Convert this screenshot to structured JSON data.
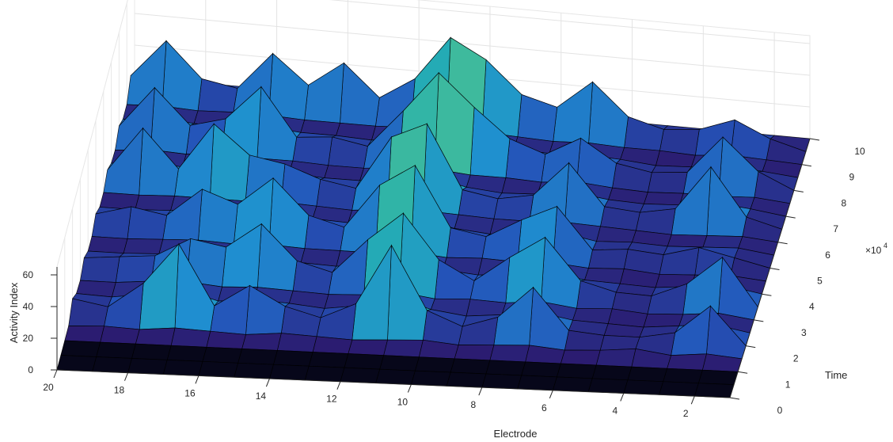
{
  "chart_data": {
    "type": "surface",
    "x_axis": {
      "label": "Electrode",
      "ticks": [
        2,
        4,
        6,
        8,
        10,
        12,
        14,
        16,
        18,
        20
      ],
      "range": [
        1,
        20
      ]
    },
    "y_axis": {
      "label": "Time",
      "ticks": [
        0,
        1,
        2,
        3,
        4,
        5,
        6,
        7,
        8,
        9,
        10
      ],
      "range": [
        0,
        10
      ],
      "exponent_label": "×10",
      "exponent_power": "4"
    },
    "z_axis": {
      "label": "Activity Index",
      "ticks": [
        0,
        20,
        40,
        60
      ],
      "range": [
        0,
        65
      ]
    },
    "grid": true,
    "colormap": "parula",
    "colors": [
      "#2b1a6e",
      "#2452b8",
      "#1f8fd0",
      "#25b0b0",
      "#5cc686",
      "#b9c55a",
      "#f0b93a"
    ],
    "electrodes": [
      1,
      2,
      3,
      4,
      5,
      6,
      7,
      8,
      9,
      10,
      11,
      12,
      13,
      14,
      15,
      16,
      17,
      18,
      19,
      20
    ],
    "time_rows": [
      0,
      0.5,
      1,
      1.5,
      2,
      2.5,
      3,
      3.5,
      4,
      4.5,
      5,
      5.5,
      6,
      6.5,
      7,
      7.5,
      8,
      8.5,
      9,
      9.5,
      10
    ],
    "activity": [
      [
        0,
        0,
        0,
        0,
        0,
        0,
        0,
        0,
        0,
        0,
        0,
        0,
        0,
        0,
        0,
        0,
        0,
        0,
        0,
        0
      ],
      [
        0,
        0,
        0,
        0,
        0,
        0,
        0,
        0,
        0,
        0,
        0,
        0,
        0,
        0,
        0,
        0,
        0,
        0,
        0,
        0
      ],
      [
        0,
        0,
        0,
        0,
        0,
        0,
        0,
        0,
        0,
        0,
        0,
        0,
        0,
        0,
        0,
        0,
        0,
        0,
        0,
        0
      ],
      [
        0,
        2,
        0,
        3,
        1,
        0,
        2,
        1,
        0,
        2,
        1,
        0,
        1,
        2,
        0,
        1,
        2,
        0,
        1,
        0
      ],
      [
        0,
        24,
        6,
        2,
        2,
        4,
        30,
        10,
        3,
        12,
        52,
        14,
        4,
        10,
        22,
        8,
        46,
        20,
        4,
        8
      ],
      [
        0,
        4,
        2,
        0,
        1,
        2,
        6,
        3,
        1,
        4,
        10,
        4,
        1,
        3,
        4,
        2,
        8,
        4,
        1,
        2
      ],
      [
        0,
        3,
        1,
        0,
        2,
        1,
        4,
        2,
        3,
        2,
        5,
        2,
        1,
        2,
        3,
        2,
        4,
        3,
        1,
        1
      ],
      [
        0,
        30,
        12,
        3,
        4,
        10,
        36,
        22,
        6,
        18,
        46,
        28,
        6,
        12,
        34,
        18,
        22,
        10,
        8,
        6
      ],
      [
        0,
        4,
        2,
        0,
        1,
        2,
        6,
        3,
        1,
        3,
        8,
        4,
        1,
        2,
        5,
        3,
        4,
        2,
        1,
        1
      ],
      [
        0,
        2,
        1,
        0,
        2,
        1,
        3,
        2,
        3,
        2,
        4,
        2,
        2,
        2,
        3,
        2,
        3,
        2,
        1,
        1
      ],
      [
        0,
        5,
        10,
        4,
        6,
        4,
        30,
        20,
        8,
        12,
        50,
        36,
        8,
        14,
        36,
        18,
        26,
        8,
        12,
        6
      ],
      [
        0,
        3,
        2,
        1,
        2,
        1,
        5,
        3,
        1,
        3,
        8,
        5,
        2,
        3,
        5,
        3,
        4,
        2,
        1,
        1
      ],
      [
        0,
        2,
        1,
        0,
        1,
        2,
        3,
        2,
        2,
        3,
        4,
        3,
        1,
        2,
        3,
        2,
        2,
        2,
        1,
        1
      ],
      [
        0,
        6,
        36,
        8,
        4,
        6,
        32,
        10,
        6,
        10,
        50,
        40,
        6,
        10,
        18,
        22,
        40,
        10,
        34,
        6
      ],
      [
        0,
        3,
        5,
        2,
        1,
        2,
        5,
        2,
        1,
        3,
        8,
        5,
        2,
        2,
        3,
        3,
        5,
        2,
        4,
        1
      ],
      [
        0,
        2,
        1,
        1,
        0,
        1,
        3,
        1,
        2,
        2,
        4,
        3,
        1,
        1,
        2,
        2,
        3,
        1,
        2,
        0
      ],
      [
        0,
        10,
        30,
        6,
        4,
        8,
        22,
        10,
        18,
        36,
        56,
        30,
        6,
        10,
        8,
        38,
        16,
        10,
        32,
        6
      ],
      [
        0,
        2,
        4,
        1,
        0,
        2,
        3,
        2,
        3,
        4,
        8,
        4,
        1,
        2,
        2,
        4,
        2,
        2,
        4,
        1
      ],
      [
        0,
        1,
        2,
        0,
        1,
        1,
        2,
        1,
        2,
        3,
        4,
        2,
        1,
        1,
        1,
        2,
        2,
        1,
        2,
        1
      ],
      [
        0,
        6,
        16,
        8,
        6,
        12,
        32,
        14,
        20,
        40,
        52,
        24,
        10,
        30,
        14,
        32,
        8,
        12,
        34,
        10
      ],
      [
        0,
        0,
        0,
        0,
        0,
        0,
        0,
        0,
        0,
        0,
        0,
        0,
        0,
        0,
        0,
        0,
        0,
        0,
        0,
        0
      ]
    ]
  }
}
